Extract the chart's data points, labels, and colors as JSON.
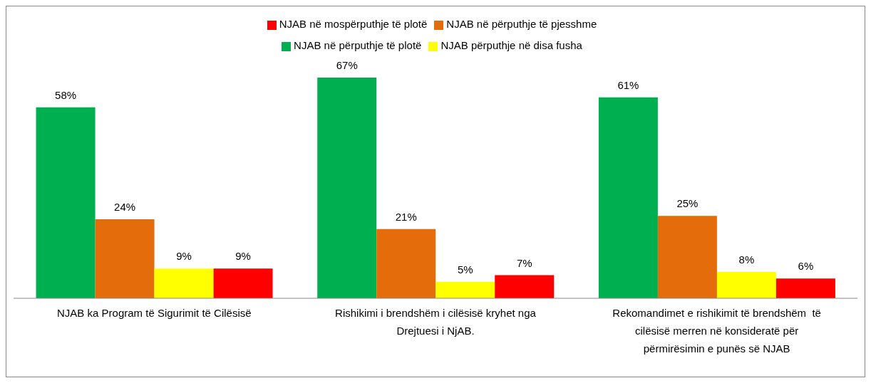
{
  "chart_data": {
    "type": "bar",
    "categories": [
      "NJAB ka Program të Sigurimit të Cilësisë",
      "Rishikimi i brendshëm i cilësisë kryhet nga Drejtuesi i NjAB.",
      "Rekomandimet e rishikimit të brendshëm  të cilësisë merren në konsideratë për përmirësimin e punës së NJAB"
    ],
    "series": [
      {
        "name": "NJAB në përputhje të plotë",
        "color": "#00b050",
        "values": [
          58,
          67,
          61
        ],
        "value_labels": [
          "58%",
          "67%",
          "61%"
        ]
      },
      {
        "name": "NJAB në përputhje të pjesshme",
        "color": "#e46c0a",
        "values": [
          24,
          21,
          25
        ],
        "value_labels": [
          "24%",
          "21%",
          "25%"
        ]
      },
      {
        "name": "NJAB përputhje në disa fusha",
        "color": "#ffff00",
        "values": [
          9,
          5,
          8
        ],
        "value_labels": [
          "9%",
          "5%",
          "8%"
        ]
      },
      {
        "name": "NJAB në mospërputhje të plotë",
        "color": "#ff0000",
        "values": [
          9,
          7,
          6
        ],
        "value_labels": [
          "9%",
          "7%",
          "6%"
        ]
      }
    ],
    "legend": "top",
    "grid": false
  }
}
